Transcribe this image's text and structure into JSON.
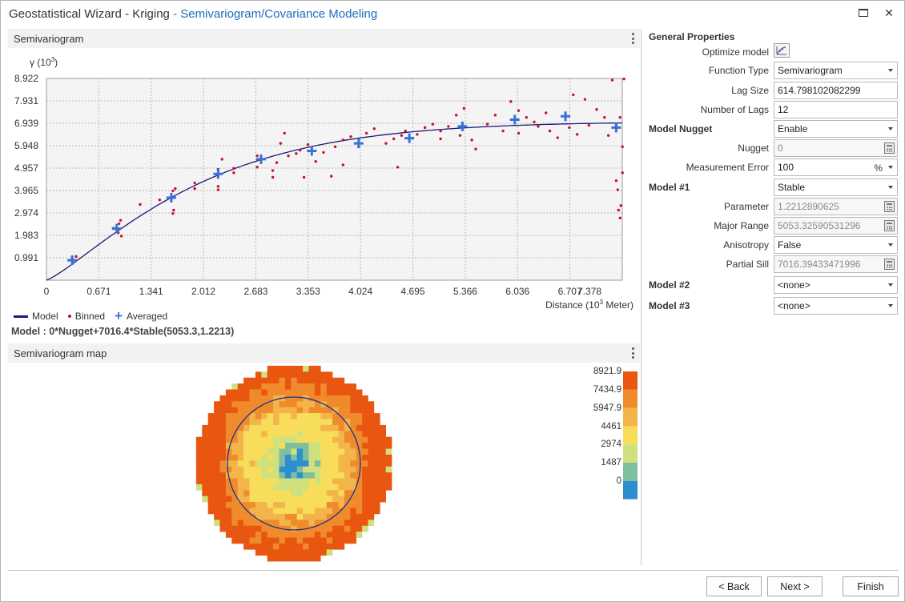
{
  "window": {
    "title_prefix": "Geostatistical Wizard - Kriging",
    "title_step": " - Semivariogram/Covariance Modeling",
    "maximize_icon": "maximize-icon",
    "close_icon": "close-icon",
    "close_glyph": "✕"
  },
  "semivariogram": {
    "panel_title": "Semivariogram",
    "legend": {
      "model": "Model",
      "binned": "Binned",
      "averaged": "Averaged"
    },
    "model_equation": "Model : 0*Nugget+7016.4*Stable(5053.3,1.2213)"
  },
  "chart_data": {
    "type": "scatter",
    "ylabel": "γ (10",
    "ylabel_sup": "3",
    "ylabel_end": ")",
    "xlabel": "Distance (10",
    "xlabel_sup": "3",
    "xlabel_end": " Meter)",
    "x_ticks": [
      "0",
      "0.671",
      "1.341",
      "2.012",
      "2.683",
      "3.353",
      "4.024",
      "4.695",
      "5.366",
      "6.036",
      "6.707",
      "7.378"
    ],
    "y_ticks": [
      "0.991",
      "1.983",
      "2.974",
      "3.965",
      "4.957",
      "5.948",
      "6.939",
      "7.931",
      "8.922"
    ],
    "xlim": [
      0,
      7.378
    ],
    "ylim": [
      0,
      8.922
    ],
    "grid": true,
    "model": {
      "nugget": 0,
      "partial_sill": 7.0164,
      "major_range": 5.0533,
      "parameter": 1.2213
    },
    "averaged": [
      [
        0.33,
        0.88
      ],
      [
        0.9,
        2.28
      ],
      [
        1.6,
        3.65
      ],
      [
        2.2,
        4.7
      ],
      [
        2.75,
        5.35
      ],
      [
        3.4,
        5.72
      ],
      [
        4.0,
        6.05
      ],
      [
        4.65,
        6.28
      ],
      [
        5.33,
        6.8
      ],
      [
        6.0,
        7.1
      ],
      [
        6.65,
        7.25
      ],
      [
        7.3,
        6.75
      ]
    ],
    "binned": [
      [
        0.33,
        0.95
      ],
      [
        0.38,
        1.05
      ],
      [
        0.86,
        2.3
      ],
      [
        0.93,
        2.5
      ],
      [
        0.95,
        2.65
      ],
      [
        0.96,
        1.95
      ],
      [
        0.92,
        2.1
      ],
      [
        1.2,
        3.35
      ],
      [
        1.45,
        3.55
      ],
      [
        1.62,
        3.95
      ],
      [
        1.63,
        3.1
      ],
      [
        1.62,
        2.95
      ],
      [
        1.65,
        4.05
      ],
      [
        1.9,
        4.3
      ],
      [
        1.9,
        4.05
      ],
      [
        2.2,
        4.15
      ],
      [
        2.2,
        4.0
      ],
      [
        2.2,
        4.9
      ],
      [
        2.25,
        5.35
      ],
      [
        2.4,
        4.95
      ],
      [
        2.4,
        4.75
      ],
      [
        2.7,
        5.5
      ],
      [
        2.7,
        5.0
      ],
      [
        2.9,
        4.85
      ],
      [
        2.9,
        4.55
      ],
      [
        2.95,
        5.2
      ],
      [
        3.0,
        6.05
      ],
      [
        3.1,
        5.5
      ],
      [
        3.2,
        5.6
      ],
      [
        3.05,
        6.5
      ],
      [
        3.25,
        5.75
      ],
      [
        3.3,
        4.55
      ],
      [
        3.35,
        6.0
      ],
      [
        3.45,
        5.25
      ],
      [
        3.55,
        5.65
      ],
      [
        3.7,
        5.9
      ],
      [
        3.8,
        6.2
      ],
      [
        3.9,
        6.35
      ],
      [
        3.8,
        5.1
      ],
      [
        3.65,
        4.6
      ],
      [
        4.0,
        5.9
      ],
      [
        4.1,
        6.5
      ],
      [
        4.2,
        6.7
      ],
      [
        4.35,
        6.05
      ],
      [
        4.45,
        6.25
      ],
      [
        4.55,
        6.4
      ],
      [
        4.5,
        5.0
      ],
      [
        4.6,
        6.6
      ],
      [
        4.75,
        6.45
      ],
      [
        4.85,
        6.75
      ],
      [
        4.95,
        6.9
      ],
      [
        5.05,
        6.6
      ],
      [
        5.05,
        6.25
      ],
      [
        5.15,
        6.8
      ],
      [
        5.25,
        7.3
      ],
      [
        5.3,
        6.4
      ],
      [
        5.35,
        7.6
      ],
      [
        5.45,
        6.2
      ],
      [
        5.5,
        5.8
      ],
      [
        5.65,
        6.9
      ],
      [
        5.75,
        7.3
      ],
      [
        5.85,
        6.6
      ],
      [
        5.95,
        7.9
      ],
      [
        6.05,
        7.5
      ],
      [
        6.05,
        6.5
      ],
      [
        6.15,
        7.2
      ],
      [
        6.25,
        7.0
      ],
      [
        6.3,
        6.8
      ],
      [
        6.4,
        7.4
      ],
      [
        6.45,
        6.6
      ],
      [
        6.55,
        6.3
      ],
      [
        6.65,
        7.3
      ],
      [
        6.7,
        6.75
      ],
      [
        6.75,
        8.2
      ],
      [
        6.8,
        6.45
      ],
      [
        6.9,
        8.0
      ],
      [
        6.95,
        6.85
      ],
      [
        7.05,
        7.55
      ],
      [
        7.15,
        7.2
      ],
      [
        7.2,
        6.4
      ],
      [
        7.25,
        8.85
      ],
      [
        7.3,
        4.4
      ],
      [
        7.32,
        4.0
      ],
      [
        7.33,
        3.1
      ],
      [
        7.35,
        2.75
      ],
      [
        7.3,
        6.9
      ],
      [
        7.35,
        7.2
      ],
      [
        7.4,
        8.9
      ],
      [
        7.38,
        5.9
      ],
      [
        7.36,
        3.3
      ],
      [
        7.38,
        4.75
      ]
    ]
  },
  "semivariogram_map": {
    "panel_title": "Semivariogram map",
    "color_scale": [
      "8921.9",
      "7434.9",
      "5947.9",
      "4461",
      "2974",
      "1487",
      "0"
    ],
    "colors": [
      "#e85610",
      "#f08b2c",
      "#f3b44a",
      "#f8dd5a",
      "#cfe07e",
      "#7fbf9d",
      "#2c8fd0"
    ]
  },
  "general_properties": {
    "title": "General Properties",
    "optimize_model_label": "Optimize model",
    "optimize_icon": "optimize-model-icon",
    "function_type": {
      "label": "Function Type",
      "value": "Semivariogram"
    },
    "lag_size": {
      "label": "Lag Size",
      "value": "614.798102082299"
    },
    "number_of_lags": {
      "label": "Number of Lags",
      "value": "12"
    },
    "model_nugget": {
      "label": "Model Nugget",
      "value": "Enable"
    },
    "nugget": {
      "label": "Nugget",
      "value": "0"
    },
    "measurement_error": {
      "label": "Measurement Error",
      "value": "100",
      "unit": "%"
    },
    "model_1": {
      "label": "Model #1",
      "value": "Stable"
    },
    "parameter": {
      "label": "Parameter",
      "value": "1.2212890625"
    },
    "major_range": {
      "label": "Major Range",
      "value": "5053.32590531296"
    },
    "anisotropy": {
      "label": "Anisotropy",
      "value": "False"
    },
    "partial_sill": {
      "label": "Partial Sill",
      "value": "7016.39433471996"
    },
    "model_2": {
      "label": "Model #2",
      "value": "<none>"
    },
    "model_3": {
      "label": "Model #3",
      "value": "<none>"
    }
  },
  "footer": {
    "back_label": "< Back",
    "next_label": "Next >",
    "finish_label": "Finish"
  }
}
